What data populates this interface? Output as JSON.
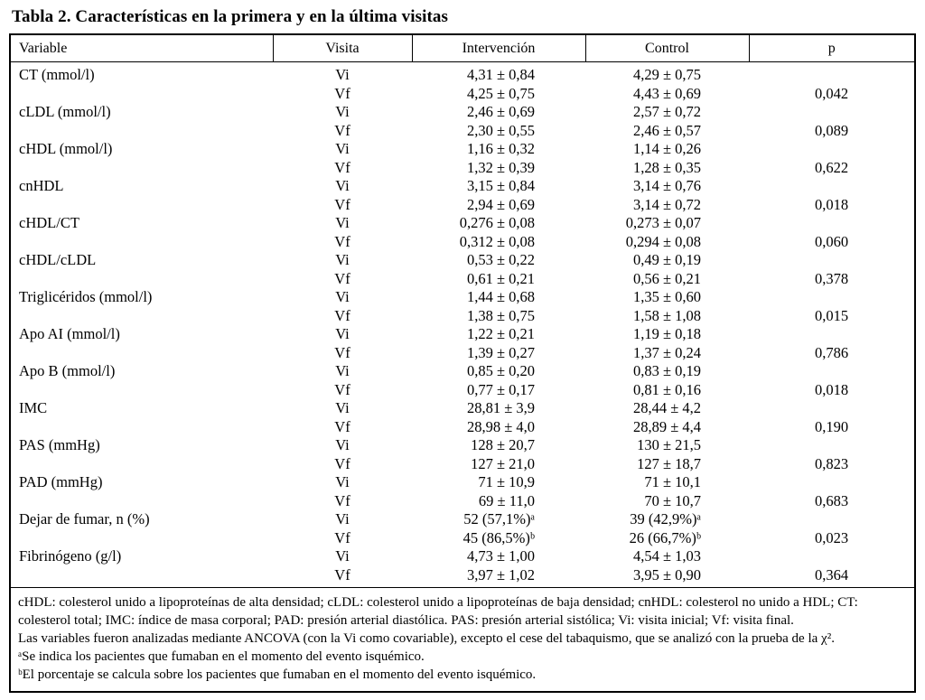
{
  "title": "Tabla 2. Características en la primera y en la última visitas",
  "table": {
    "headers": [
      "Variable",
      "Visita",
      "Intervención",
      "Control",
      "p"
    ],
    "rows": [
      {
        "variable": "CT (mmol/l)",
        "visita": "Vi",
        "intervencion": "4,31 ± 0,84",
        "control": "4,29 ± 0,75",
        "p": ""
      },
      {
        "variable": "",
        "visita": "Vf",
        "intervencion": "4,25 ± 0,75",
        "control": "4,43 ± 0,69",
        "p": "0,042"
      },
      {
        "variable": "cLDL (mmol/l)",
        "visita": "Vi",
        "intervencion": "2,46 ± 0,69",
        "control": "2,57 ± 0,72",
        "p": ""
      },
      {
        "variable": "",
        "visita": "Vf",
        "intervencion": "2,30 ± 0,55",
        "control": "2,46 ± 0,57",
        "p": "0,089"
      },
      {
        "variable": "cHDL (mmol/l)",
        "visita": "Vi",
        "intervencion": "1,16 ± 0,32",
        "control": "1,14 ± 0,26",
        "p": ""
      },
      {
        "variable": "",
        "visita": "Vf",
        "intervencion": "1,32 ± 0,39",
        "control": "1,28 ± 0,35",
        "p": "0,622"
      },
      {
        "variable": "cnHDL",
        "visita": "Vi",
        "intervencion": "3,15 ± 0,84",
        "control": "3,14 ± 0,76",
        "p": ""
      },
      {
        "variable": "",
        "visita": "Vf",
        "intervencion": "2,94 ± 0,69",
        "control": "3,14 ± 0,72",
        "p": "0,018"
      },
      {
        "variable": "cHDL/CT",
        "visita": "Vi",
        "intervencion": "0,276 ± 0,08",
        "control": "0,273 ± 0,07",
        "p": ""
      },
      {
        "variable": "",
        "visita": "Vf",
        "intervencion": "0,312 ± 0,08",
        "control": "0,294 ± 0,08",
        "p": "0,060"
      },
      {
        "variable": "cHDL/cLDL",
        "visita": "Vi",
        "intervencion": "0,53 ± 0,22",
        "control": "0,49 ± 0,19",
        "p": ""
      },
      {
        "variable": "",
        "visita": "Vf",
        "intervencion": "0,61 ± 0,21",
        "control": "0,56 ± 0,21",
        "p": "0,378"
      },
      {
        "variable": "Triglicéridos (mmol/l)",
        "visita": "Vi",
        "intervencion": "1,44 ± 0,68",
        "control": "1,35 ± 0,60",
        "p": ""
      },
      {
        "variable": "",
        "visita": "Vf",
        "intervencion": "1,38 ± 0,75",
        "control": "1,58 ± 1,08",
        "p": "0,015"
      },
      {
        "variable": "Apo AI (mmol/l)",
        "visita": "Vi",
        "intervencion": "1,22 ± 0,21",
        "control": "1,19 ± 0,18",
        "p": ""
      },
      {
        "variable": "",
        "visita": "Vf",
        "intervencion": "1,39 ± 0,27",
        "control": "1,37 ± 0,24",
        "p": "0,786"
      },
      {
        "variable": "Apo B (mmol/l)",
        "visita": "Vi",
        "intervencion": "0,85 ± 0,20",
        "control": "0,83 ± 0,19",
        "p": ""
      },
      {
        "variable": "",
        "visita": "Vf",
        "intervencion": "0,77 ± 0,17",
        "control": "0,81 ± 0,16",
        "p": "0,018"
      },
      {
        "variable": "IMC",
        "visita": "Vi",
        "intervencion": "28,81 ± 3,9",
        "control": "28,44 ± 4,2",
        "p": ""
      },
      {
        "variable": "",
        "visita": "Vf",
        "intervencion": "28,98 ± 4,0",
        "control": "28,89 ± 4,4",
        "p": "0,190"
      },
      {
        "variable": "PAS (mmHg)",
        "visita": "Vi",
        "intervencion": "128 ± 20,7",
        "control": "130 ± 21,5",
        "p": ""
      },
      {
        "variable": "",
        "visita": "Vf",
        "intervencion": "127 ± 21,0",
        "control": "127 ± 18,7",
        "p": "0,823"
      },
      {
        "variable": "PAD (mmHg)",
        "visita": "Vi",
        "intervencion": "71 ± 10,9",
        "control": "71 ± 10,1",
        "p": ""
      },
      {
        "variable": "",
        "visita": "Vf",
        "intervencion": "69 ± 11,0",
        "control": "70 ± 10,7",
        "p": "0,683"
      },
      {
        "variable": "Dejar de fumar, n (%)",
        "visita": "Vi",
        "intervencion": "52 (57,1%)ᵃ",
        "control": "39 (42,9%)ᵃ",
        "p": ""
      },
      {
        "variable": "",
        "visita": "Vf",
        "intervencion": "45 (86,5%)ᵇ",
        "control": "26 (66,7%)ᵇ",
        "p": "0,023"
      },
      {
        "variable": "Fibrinógeno (g/l)",
        "visita": "Vi",
        "intervencion": "4,73 ± 1,00",
        "control": "4,54 ± 1,03",
        "p": ""
      },
      {
        "variable": "",
        "visita": "Vf",
        "intervencion": "3,97 ± 1,02",
        "control": "3,95 ± 0,90",
        "p": "0,364"
      }
    ]
  },
  "footnotes": [
    "cHDL: colesterol unido a lipoproteínas de alta densidad; cLDL: colesterol unido a lipoproteínas de baja densidad; cnHDL: colesterol no unido a HDL; CT: colesterol total; IMC: índice de masa corporal; PAD: presión arterial diastólica. PAS: presión arterial sistólica; Vi: visita inicial; Vf: visita final.",
    "Las variables fueron analizadas mediante ANCOVA (con la Vi como covariable), excepto el cese del tabaquismo, que se analizó con la prueba de la χ².",
    "ᵃSe indica los pacientes que fumaban en el momento del evento isquémico.",
    "ᵇEl porcentaje se calcula sobre los pacientes que fumaban en el momento del evento isquémico."
  ]
}
